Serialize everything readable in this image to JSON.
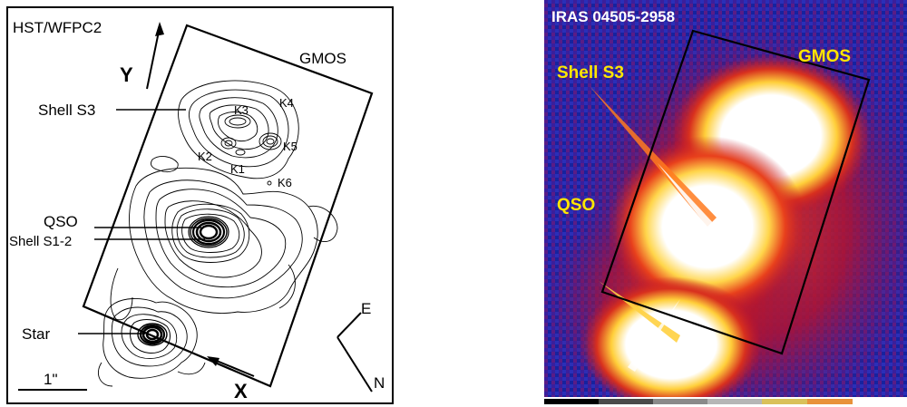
{
  "left": {
    "instrument": "HST/WFPC2",
    "gmos": "GMOS",
    "axis_y": "Y",
    "axis_x": "X",
    "shell_s3": "Shell S3",
    "knots": [
      "K1",
      "K2",
      "K3",
      "K4",
      "K5",
      "K6"
    ],
    "qso": "QSO",
    "shell_s12": "Shell S1-2",
    "star": "Star",
    "scale": "1\"",
    "east": "E",
    "north": "N"
  },
  "right": {
    "title": "IRAS 04505-2958",
    "shell_s3": "Shell S3",
    "gmos": "GMOS",
    "qso": "QSO"
  },
  "colors": {
    "label_yellow": "#ffe600",
    "background_blue": "#1f2bb0",
    "halo_red": "#c0142a"
  }
}
